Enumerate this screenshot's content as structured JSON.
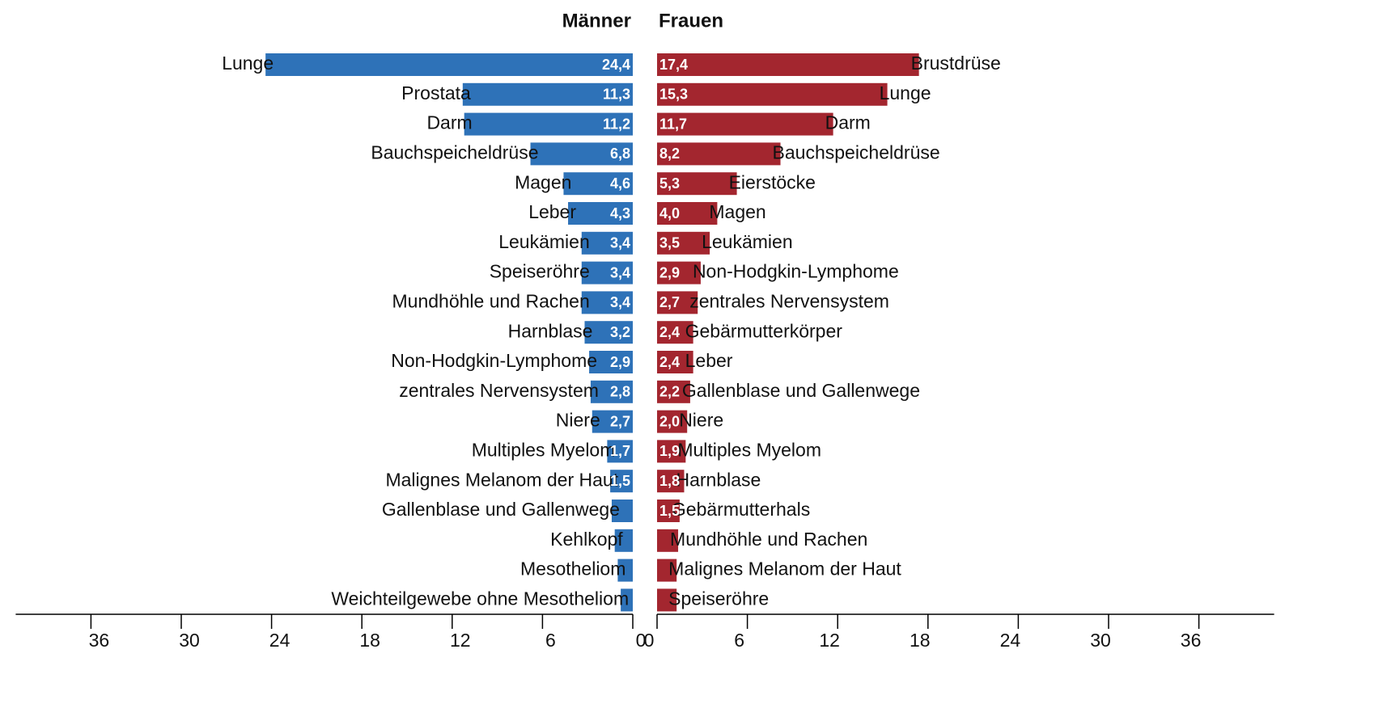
{
  "chart_data": [
    {
      "type": "bar",
      "orientation": "horizontal",
      "title": "Männer",
      "x_reversed": true,
      "color": "#2e72b8",
      "categories": [
        "Lunge",
        "Prostata",
        "Darm",
        "Bauchspeicheldrüse",
        "Magen",
        "Leber",
        "Leukämien",
        "Speiseröhre",
        "Mundhöhle und Rachen",
        "Harnblase",
        "Non-Hodgkin-Lymphome",
        "zentrales Nervensystem",
        "Niere",
        "Multiples Myelom",
        "Malignes Melanom der Haut",
        "Gallenblase und Gallenwege",
        "Kehlkopf",
        "Mesotheliom",
        "Weichteilgewebe ohne Mesotheliom"
      ],
      "values": [
        24.4,
        11.3,
        11.2,
        6.8,
        4.6,
        4.3,
        3.4,
        3.4,
        3.4,
        3.2,
        2.9,
        2.8,
        2.7,
        1.7,
        1.5,
        1.4,
        1.2,
        1.0,
        0.8
      ],
      "value_labels": [
        "24,4",
        "11,3",
        "11,2",
        "6,8",
        "4,6",
        "4,3",
        "3,4",
        "3,4",
        "3,4",
        "3,2",
        "2,9",
        "2,8",
        "2,7",
        "1,7",
        "1,5",
        null,
        null,
        null,
        null
      ],
      "xlim": [
        0,
        41
      ],
      "xticks": [
        0,
        6,
        12,
        18,
        24,
        30,
        36
      ]
    },
    {
      "type": "bar",
      "orientation": "horizontal",
      "title": "Frauen",
      "x_reversed": false,
      "color": "#a3262f",
      "categories": [
        "Brustdrüse",
        "Lunge",
        "Darm",
        "Bauchspeicheldrüse",
        "Eierstöcke",
        "Magen",
        "Leukämien",
        "Non-Hodgkin-Lymphome",
        "zentrales Nervensystem",
        "Gebärmutterkörper",
        "Leber",
        "Gallenblase und Gallenwege",
        "Niere",
        "Multiples Myelom",
        "Harnblase",
        "Gebärmutterhals",
        "Mundhöhle und Rachen",
        "Malignes Melanom der Haut",
        "Speiseröhre"
      ],
      "values": [
        17.4,
        15.3,
        11.7,
        8.2,
        5.3,
        4.0,
        3.5,
        2.9,
        2.7,
        2.4,
        2.4,
        2.2,
        2.0,
        1.9,
        1.8,
        1.5,
        1.4,
        1.3,
        1.3
      ],
      "value_labels": [
        "17,4",
        "15,3",
        "11,7",
        "8,2",
        "5,3",
        "4,0",
        "3,5",
        "2,9",
        "2,7",
        "2,4",
        "2,4",
        "2,2",
        "2,0",
        "1,9",
        "1,8",
        "1,5",
        null,
        null,
        null
      ],
      "xlim": [
        0,
        41
      ],
      "xticks": [
        0,
        6,
        12,
        18,
        24,
        30,
        36
      ]
    }
  ]
}
